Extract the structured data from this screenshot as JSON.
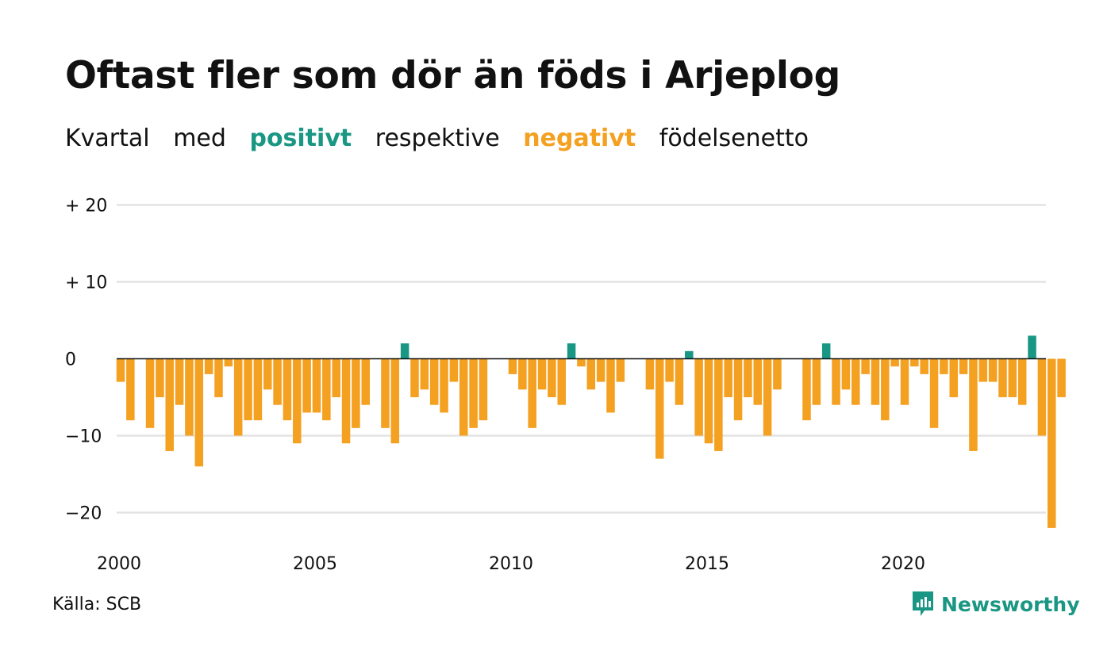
{
  "title": "Oftast fler som dör än föds i Arjeplog",
  "subtitle": {
    "part1": "Kvartal",
    "part2": "med",
    "positive": "positivt",
    "part3": "respektive",
    "negative": "negativt",
    "part4": "födelsenetto"
  },
  "source": "Källa: SCB",
  "brand": "Newsworthy",
  "colors": {
    "positive": "#1a9784",
    "negative": "#f4a020",
    "grid": "#e3e3e3",
    "axis": "#111111"
  },
  "chart_data": {
    "type": "bar",
    "x_start": 2000.0,
    "x_step": 0.25,
    "values": [
      -3,
      -8,
      0,
      -9,
      -5,
      -12,
      -6,
      -10,
      -14,
      -2,
      -5,
      -1,
      -10,
      -8,
      -8,
      -4,
      -6,
      -8,
      -11,
      -7,
      -7,
      -8,
      -5,
      -11,
      -9,
      -6,
      0,
      -9,
      -11,
      2,
      -5,
      -4,
      -6,
      -7,
      -3,
      -10,
      -9,
      -8,
      0,
      0,
      -2,
      -4,
      -9,
      -4,
      -5,
      -6,
      2,
      -1,
      -4,
      -3,
      -7,
      -3,
      0,
      0,
      -4,
      -13,
      -3,
      -6,
      1,
      -10,
      -11,
      -12,
      -5,
      -8,
      -5,
      -6,
      -10,
      -4,
      0,
      0,
      -8,
      -6,
      2,
      -6,
      -4,
      -6,
      -2,
      -6,
      -8,
      -1,
      -6,
      -1,
      -2,
      -9,
      -2,
      -5,
      -2,
      -12,
      -3,
      -3,
      -5,
      -5,
      -6,
      3,
      -10,
      -22,
      -5
    ],
    "ylim": [
      -24,
      20
    ],
    "yticks": [
      20,
      10,
      0,
      -10,
      -20
    ],
    "ytick_labels": [
      "+ 20",
      "+ 10",
      "0",
      "−10",
      "−20"
    ],
    "xlim": [
      2000,
      2023.75
    ],
    "xticks": [
      2000,
      2005,
      2010,
      2015,
      2020
    ],
    "xtick_labels": [
      "2000",
      "2005",
      "2010",
      "2015",
      "2020"
    ],
    "grid": true,
    "legend": "none"
  }
}
